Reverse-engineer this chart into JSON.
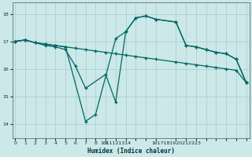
{
  "background_color": "#cce8e8",
  "grid_color": "#aacccc",
  "line_color": "#006666",
  "xlabel": "Humidex (Indice chaleur)",
  "xlim": [
    -0.3,
    23.3
  ],
  "ylim": [
    13.5,
    18.4
  ],
  "yticks": [
    14,
    15,
    16,
    17,
    18
  ],
  "xtick_pos": [
    0,
    1,
    2,
    3,
    4,
    5,
    6,
    7,
    8,
    9,
    10,
    11,
    12,
    13,
    14,
    16,
    17,
    18,
    19,
    20,
    21,
    22,
    23
  ],
  "xtick_lbl": [
    "0",
    "1",
    "2",
    "3",
    "4",
    "5",
    "6",
    "7",
    "8",
    "9",
    "1011121314",
    "",
    "",
    "",
    "",
    "1617181920212223",
    "",
    "",
    "",
    "",
    "",
    "",
    ""
  ],
  "line1": {
    "x": [
      0,
      1,
      2,
      3,
      4,
      5,
      6,
      7,
      8,
      9,
      10,
      11,
      12,
      13,
      14,
      16,
      17,
      18,
      19,
      20,
      21,
      22,
      23
    ],
    "y": [
      17.0,
      17.05,
      16.95,
      16.9,
      16.85,
      16.8,
      16.75,
      16.7,
      16.65,
      16.6,
      16.55,
      16.5,
      16.45,
      16.4,
      16.35,
      16.25,
      16.2,
      16.15,
      16.1,
      16.05,
      16.0,
      15.95,
      15.5
    ]
  },
  "line2": {
    "x": [
      0,
      1,
      3,
      4,
      5,
      6,
      7,
      9,
      10,
      11,
      12,
      13,
      14,
      16,
      17,
      18,
      19,
      20,
      21,
      22,
      23
    ],
    "y": [
      17.0,
      17.05,
      16.85,
      16.8,
      16.7,
      16.1,
      15.3,
      15.8,
      14.8,
      17.35,
      17.85,
      17.92,
      17.8,
      17.7,
      16.85,
      16.8,
      16.7,
      16.6,
      16.55,
      16.35,
      15.5
    ]
  },
  "line3": {
    "x": [
      0,
      1,
      2,
      3,
      4,
      5,
      7,
      8,
      10,
      11,
      12,
      13,
      14,
      16,
      17,
      18,
      19,
      20,
      21,
      22,
      23
    ],
    "y": [
      17.0,
      17.05,
      16.95,
      16.9,
      16.85,
      16.8,
      14.1,
      14.35,
      17.1,
      17.35,
      17.85,
      17.92,
      17.8,
      17.7,
      16.85,
      16.8,
      16.7,
      16.6,
      16.55,
      16.35,
      15.5
    ]
  }
}
